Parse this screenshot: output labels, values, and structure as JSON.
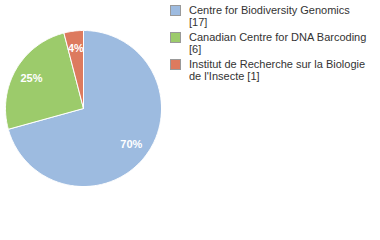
{
  "chart_data": {
    "type": "pie",
    "categories": [
      "Centre for Biodiversity Genomics [17]",
      "Canadian Centre for DNA Barcoding [6]",
      "Institut de Recherche sur la Biologie de l'Insecte [1]"
    ],
    "values": [
      70,
      25,
      4
    ],
    "value_labels": [
      "70%",
      "25%",
      "4%"
    ],
    "colors": [
      "#9dbbe0",
      "#9ccb6b",
      "#dd7a5e"
    ],
    "data_labels": true,
    "legend": "right"
  }
}
